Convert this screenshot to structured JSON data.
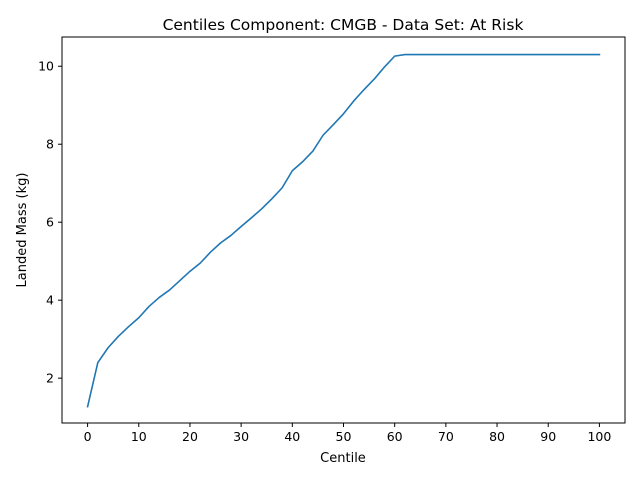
{
  "chart_data": {
    "type": "line",
    "title": "Centiles Component: CMGB - Data Set: At Risk",
    "xlabel": "Centile",
    "ylabel": "Landed Mass (kg)",
    "xlim": [
      -5,
      105
    ],
    "ylim": [
      0.85,
      10.75
    ],
    "xticks": [
      0,
      10,
      20,
      30,
      40,
      50,
      60,
      70,
      80,
      90,
      100
    ],
    "yticks": [
      2,
      4,
      6,
      8,
      10
    ],
    "grid": false,
    "line_color": "#1f77b4",
    "series": [
      {
        "x": [
          0,
          2,
          4,
          6,
          8,
          10,
          12,
          14,
          16,
          18,
          20,
          22,
          24,
          26,
          28,
          30,
          32,
          34,
          36,
          38,
          40,
          42,
          44,
          46,
          48,
          50,
          52,
          54,
          56,
          58,
          60,
          62,
          64,
          66,
          68,
          70,
          72,
          74,
          76,
          78,
          80,
          82,
          84,
          86,
          88,
          90,
          92,
          94,
          96,
          98,
          100
        ],
        "y": [
          1.27,
          2.4,
          2.78,
          3.07,
          3.32,
          3.55,
          3.84,
          4.07,
          4.26,
          4.5,
          4.74,
          4.95,
          5.23,
          5.47,
          5.66,
          5.89,
          6.11,
          6.34,
          6.6,
          6.88,
          7.32,
          7.55,
          7.82,
          8.23,
          8.5,
          8.78,
          9.11,
          9.4,
          9.67,
          9.98,
          10.26,
          10.3,
          10.3,
          10.3,
          10.3,
          10.3,
          10.3,
          10.3,
          10.3,
          10.3,
          10.3,
          10.3,
          10.3,
          10.3,
          10.3,
          10.3,
          10.3,
          10.3,
          10.3,
          10.3,
          10.3
        ]
      }
    ]
  }
}
